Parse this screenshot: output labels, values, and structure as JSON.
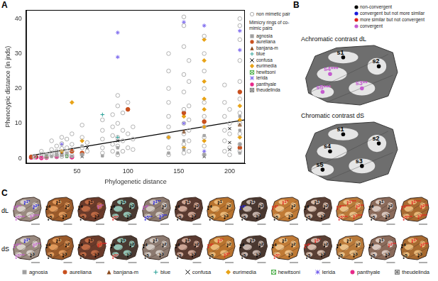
{
  "chart_data": {
    "type": "scatter",
    "panel": "A",
    "x_label": "Phylogenetic distance",
    "y_label": "Phenotypic distance (in jnds)",
    "xlim": [
      0,
      215
    ],
    "xticks": [
      50,
      100,
      150,
      200
    ],
    "ylim": [
      -1.5,
      42.5
    ],
    "yticks": [
      0,
      10,
      20,
      30,
      40
    ],
    "grid": false,
    "legend": "right",
    "legend_title": "Mimicry rings of co-mimic pairs",
    "series": [
      {
        "name": "non mimetic pair",
        "color": "#b0b0b0",
        "marker": "open circle",
        "x": [
          8,
          8,
          15,
          15,
          15,
          20,
          20,
          25,
          25,
          25,
          25,
          30,
          30,
          30,
          30,
          35,
          35,
          35,
          35,
          35,
          40,
          40,
          40,
          40,
          45,
          45,
          45,
          45,
          55,
          55,
          55,
          55,
          60,
          60,
          75,
          75,
          75,
          75,
          75,
          85,
          85,
          85,
          85,
          85,
          90,
          90,
          90,
          90,
          90,
          90,
          95,
          95,
          95,
          95,
          100,
          100,
          100,
          105,
          105,
          105,
          140,
          140,
          140,
          140,
          140,
          140,
          140,
          140,
          140,
          155,
          155,
          155,
          155,
          155,
          155,
          155,
          155,
          155,
          155,
          160,
          160,
          160,
          160,
          160,
          160,
          160,
          175,
          175,
          175,
          175,
          175,
          175,
          175,
          175,
          175,
          175,
          195,
          195,
          195,
          195,
          195,
          195,
          200,
          200,
          200,
          200,
          200,
          210,
          210,
          210,
          210,
          210,
          210,
          210,
          210,
          210,
          210,
          210
        ],
        "values": [
          0.3,
          0.6,
          0.5,
          1.2,
          2.0,
          0.4,
          1.0,
          0.8,
          1.5,
          2.5,
          5.0,
          0.5,
          1.0,
          2.0,
          3.5,
          0.5,
          1.5,
          2.8,
          4.2,
          6.0,
          1.0,
          2.0,
          3.0,
          5.5,
          0.8,
          2.5,
          4.0,
          7.0,
          1.0,
          3.0,
          6.0,
          9.5,
          2.0,
          4.5,
          1.5,
          3.0,
          5.5,
          8.0,
          11.0,
          2.0,
          4.0,
          6.5,
          9.0,
          12.5,
          1.0,
          3.5,
          6.0,
          10.0,
          15.0,
          18.0,
          2.0,
          5.0,
          8.0,
          13.0,
          3.0,
          7.0,
          16.0,
          2.5,
          5.5,
          9.0,
          1.0,
          3.0,
          6.0,
          9.0,
          12.0,
          16.0,
          20.0,
          25.0,
          30.0,
          1.5,
          4.0,
          7.0,
          10.0,
          14.0,
          19.0,
          24.0,
          32.0,
          38.0,
          40.5,
          2.0,
          5.0,
          8.0,
          11.0,
          15.0,
          22.0,
          28.0,
          1.0,
          3.5,
          6.0,
          9.0,
          12.0,
          16.0,
          20.0,
          25.0,
          30.0,
          35.0,
          2.0,
          5.0,
          8.0,
          12.0,
          16.0,
          21.0,
          1.0,
          3.0,
          7.0,
          10.0,
          14.0,
          2.0,
          4.0,
          7.0,
          10.0,
          13.0,
          17.0,
          22.0,
          28.0,
          34.0,
          38.0,
          40.0
        ]
      },
      {
        "name": "agnosia",
        "color": "#a0a0a0",
        "marker": "square",
        "x": [
          25,
          30,
          35,
          40,
          45,
          55,
          55,
          75,
          90,
          90,
          140,
          155,
          155,
          175,
          175,
          210,
          210,
          210,
          210
        ],
        "values": [
          0.5,
          1.0,
          0.8,
          1.5,
          0.5,
          1.0,
          3.5,
          0.7,
          1.5,
          3.0,
          1.5,
          2.5,
          5.0,
          1.0,
          6.5,
          1.5,
          4.0,
          8.0,
          12.0
        ]
      },
      {
        "name": "aureliana",
        "color": "#c8501e",
        "marker": "circle",
        "x": [
          5,
          45,
          55,
          100,
          155,
          175,
          210,
          210
        ],
        "values": [
          0.4,
          2.0,
          1.5,
          14.0,
          13.0,
          10.5,
          3.0,
          19.0
        ]
      },
      {
        "name": "banjana-m",
        "color": "#8b4a1c",
        "marker": "triangle",
        "x": [
          10,
          35,
          155,
          210
        ],
        "values": [
          0.5,
          1.0,
          7.5,
          9.5
        ]
      },
      {
        "name": "blue",
        "color": "#2aa198",
        "marker": "plus",
        "x": [
          75,
          90
        ],
        "values": [
          12.5,
          6.0
        ]
      },
      {
        "name": "confusa",
        "color": "#000000",
        "marker": "x",
        "x": [
          55,
          60,
          90,
          175,
          200,
          200,
          200
        ],
        "values": [
          0.5,
          3.0,
          5.0,
          0.5,
          8.5,
          4.5,
          2.5
        ]
      },
      {
        "name": "eurimedia",
        "color": "#e8a317",
        "marker": "diamond",
        "x": [
          35,
          45,
          55,
          140,
          155,
          155,
          175,
          175,
          175,
          175,
          175,
          175,
          175,
          210,
          210,
          210
        ],
        "values": [
          2.0,
          16.0,
          5.0,
          6.0,
          12.0,
          3.0,
          34.0,
          28.0,
          22.0,
          17.0,
          14.0,
          9.0,
          5.0,
          11.0,
          6.0,
          15.0
        ]
      },
      {
        "name": "hewitsoni",
        "color": "#4daf4a",
        "marker": "boxed x",
        "x": [
          20,
          40
        ],
        "values": [
          0.4,
          0.6
        ]
      },
      {
        "name": "lerida",
        "color": "#7b68ee",
        "marker": "asterisk",
        "x": [
          35,
          90,
          90,
          155,
          155,
          175,
          175,
          210,
          210
        ],
        "values": [
          4.0,
          29.0,
          36.0,
          39.0,
          10.0,
          38.0,
          2.0,
          36.5,
          31.0
        ]
      },
      {
        "name": "panthyale",
        "color": "#e7298a",
        "marker": "circle",
        "x": [
          5,
          10,
          15,
          20,
          30,
          45
        ],
        "values": [
          0.2,
          0.3,
          0.1,
          0.2,
          0.4,
          0.3
        ]
      },
      {
        "name": "theudelinda",
        "color": "#808080",
        "marker": "boxed star",
        "x": [
          20,
          30,
          35,
          40
        ],
        "values": [
          0.8,
          1.5,
          1.2,
          0.5
        ]
      }
    ],
    "fit_line": {
      "x": [
        5,
        215
      ],
      "values": [
        0.8,
        11
      ],
      "color": "#000000"
    }
  },
  "panel_b": {
    "label": "B",
    "legend": [
      {
        "name": "non-convergent",
        "color": "#000000"
      },
      {
        "name": "convergent but not more similar",
        "color": "#1a1adc"
      },
      {
        "name": "more similar but not convergent",
        "color": "#e0201b"
      },
      {
        "name": "convergent",
        "color": "#c45ccf"
      }
    ],
    "wings": [
      {
        "title": "Achromatic contrast dL",
        "labels": [
          "s1",
          "s2",
          "s3**",
          "s4***",
          "s5***"
        ],
        "colors": [
          "#000000",
          "#000000",
          "#c45ccf",
          "#c45ccf",
          "#c45ccf"
        ]
      },
      {
        "title": "Chromatic contrast dS",
        "labels": [
          "s1",
          "s2",
          "s3",
          "s4",
          "s5"
        ],
        "colors": [
          "#000000",
          "#000000",
          "#000000",
          "#000000",
          "#000000"
        ]
      }
    ]
  },
  "panel_c": {
    "label": "C",
    "rows": [
      {
        "name": "dL",
        "wings": [
          {
            "labels": [
              "s1*",
              "s2*",
              "s3***",
              "s4**",
              "s5***"
            ],
            "colors": [
              "#1a1adc",
              "#1a1adc",
              "#c45ccf",
              "#c45ccf",
              "#c45ccf"
            ]
          },
          {
            "labels": [
              "s1",
              "s2",
              "s3",
              "s4",
              "s5"
            ],
            "colors": [
              "#000000",
              "#000000",
              "#000000",
              "#000000",
              "#000000"
            ]
          },
          {
            "labels": [
              "s1",
              "s2*",
              "s3",
              "s4",
              "s5"
            ],
            "colors": [
              "#000000",
              "#c45ccf",
              "#000000",
              "#000000",
              "#000000"
            ]
          },
          {
            "labels": [
              "s1",
              "s2",
              "s3",
              "s4",
              "s5*"
            ],
            "colors": [
              "#000000",
              "#000000",
              "#000000",
              "#000000",
              "#e0201b"
            ]
          },
          {
            "labels": [
              "s1**",
              "s2",
              "s3**",
              "s4*",
              "s5**"
            ],
            "colors": [
              "#1a1adc",
              "#000000",
              "#1a1adc",
              "#c45ccf",
              "#1a1adc"
            ]
          },
          {
            "labels": [
              "s1",
              "s2",
              "s3",
              "s4",
              "s5"
            ],
            "colors": [
              "#000000",
              "#000000",
              "#000000",
              "#000000",
              "#000000"
            ]
          },
          {
            "labels": [
              "s1",
              "s2",
              "s3",
              "s4",
              "s5"
            ],
            "colors": [
              "#000000",
              "#000000",
              "#000000",
              "#000000",
              "#000000"
            ]
          },
          {
            "labels": [
              "s1",
              "s2",
              "s3",
              "s4*",
              "s5"
            ],
            "colors": [
              "#000000",
              "#000000",
              "#000000",
              "#1a1adc",
              "#000000"
            ]
          },
          {
            "labels": [
              "s1*",
              "s2",
              "s3",
              "s4*",
              "s5"
            ],
            "colors": [
              "#e0201b",
              "#000000",
              "#000000",
              "#e0201b",
              "#000000"
            ]
          },
          {
            "labels": [
              "s1",
              "s2",
              "s3",
              "s4",
              "s5"
            ],
            "colors": [
              "#000000",
              "#000000",
              "#000000",
              "#000000",
              "#000000"
            ]
          },
          {
            "labels": [
              "s1***",
              "s2**",
              "s3***",
              "s4***",
              "s5***"
            ],
            "colors": [
              "#e0201b",
              "#e0201b",
              "#e0201b",
              "#e0201b",
              "#e0201b"
            ]
          },
          {
            "labels": [
              "s1",
              "s2",
              "s3",
              "s4",
              "s5"
            ],
            "colors": [
              "#000000",
              "#000000",
              "#000000",
              "#000000",
              "#000000"
            ]
          },
          {
            "labels": [
              "s1***",
              "s2**",
              "s3***",
              "s4***",
              "s5***"
            ],
            "colors": [
              "#e0201b",
              "#e0201b",
              "#e0201b",
              "#e0201b",
              "#e0201b"
            ]
          }
        ]
      },
      {
        "name": "dS",
        "wings": [
          {
            "labels": [
              "s1*",
              "s2**",
              "s3",
              "s4**",
              "s5***"
            ],
            "colors": [
              "#1a1adc",
              "#c45ccf",
              "#000000",
              "#c45ccf",
              "#c45ccf"
            ]
          },
          {
            "labels": [
              "s1",
              "s2",
              "s3",
              "s4",
              "s5"
            ],
            "colors": [
              "#000000",
              "#000000",
              "#000000",
              "#000000",
              "#000000"
            ]
          },
          {
            "labels": [
              "s1",
              "s2***",
              "s3",
              "s4",
              "s5"
            ],
            "colors": [
              "#000000",
              "#e0201b",
              "#000000",
              "#000000",
              "#000000"
            ]
          },
          {
            "labels": [
              "s1",
              "s2",
              "s3",
              "s4",
              "s5*"
            ],
            "colors": [
              "#000000",
              "#000000",
              "#000000",
              "#000000",
              "#e0201b"
            ]
          },
          {
            "labels": [
              "s1",
              "s2",
              "s3",
              "s4",
              "s5"
            ],
            "colors": [
              "#000000",
              "#000000",
              "#000000",
              "#000000",
              "#000000"
            ]
          },
          {
            "labels": [
              "s1",
              "s2",
              "s3",
              "s4",
              "s5"
            ],
            "colors": [
              "#000000",
              "#000000",
              "#000000",
              "#000000",
              "#000000"
            ]
          },
          {
            "labels": [
              "s1*",
              "s2",
              "s3*",
              "s4*",
              "s5"
            ],
            "colors": [
              "#e0201b",
              "#000000",
              "#e0201b",
              "#e0201b",
              "#000000"
            ]
          },
          {
            "labels": [
              "s1",
              "s2",
              "s3",
              "s4",
              "s5"
            ],
            "colors": [
              "#000000",
              "#000000",
              "#000000",
              "#000000",
              "#000000"
            ]
          },
          {
            "labels": [
              "s1",
              "s2",
              "s3",
              "s4",
              "s5*"
            ],
            "colors": [
              "#000000",
              "#000000",
              "#000000",
              "#000000",
              "#e0201b"
            ]
          },
          {
            "labels": [
              "s1*",
              "s2",
              "s3",
              "s4*",
              "s5"
            ],
            "colors": [
              "#e0201b",
              "#000000",
              "#000000",
              "#e0201b",
              "#000000"
            ]
          },
          {
            "labels": [
              "s1",
              "s2",
              "s3",
              "s4",
              "s5"
            ],
            "colors": [
              "#000000",
              "#000000",
              "#000000",
              "#000000",
              "#000000"
            ]
          },
          {
            "labels": [
              "s1",
              "s2**",
              "s3",
              "s4",
              "s5"
            ],
            "colors": [
              "#000000",
              "#e0201b",
              "#000000",
              "#000000",
              "#000000"
            ]
          },
          {
            "labels": [
              "s1*",
              "s2**",
              "s3",
              "s4",
              "s5"
            ],
            "colors": [
              "#e0201b",
              "#e0201b",
              "#000000",
              "#000000",
              "#000000"
            ]
          }
        ]
      }
    ]
  }
}
